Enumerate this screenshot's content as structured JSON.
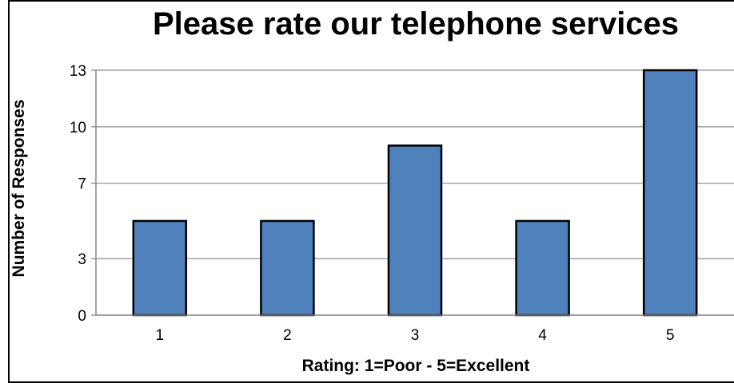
{
  "chart_data": {
    "type": "bar",
    "title": "Please rate our telephone services",
    "xlabel": "Rating: 1=Poor - 5=Excellent",
    "ylabel": "Number of Responses",
    "categories": [
      "1",
      "2",
      "3",
      "4",
      "5"
    ],
    "values": [
      5,
      5,
      9,
      5,
      13
    ],
    "yticks": [
      "0",
      "3",
      "7",
      "10",
      "13"
    ],
    "ylim": [
      0,
      13
    ],
    "grid": true,
    "legend": "none",
    "colors": {
      "bar": "#4f81bd",
      "bar_stroke": "#000000",
      "grid": "#8c8c8c",
      "axis": "#7f7f7f"
    }
  }
}
